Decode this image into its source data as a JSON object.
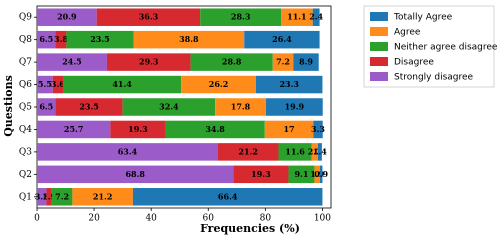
{
  "chart_data": {
    "type": "stacked-barh",
    "xlabel": "Frequencies (%)",
    "ylabel": "Questions",
    "categories": [
      "Q1",
      "Q2",
      "Q3",
      "Q4",
      "Q5",
      "Q6",
      "Q7",
      "Q8",
      "Q9"
    ],
    "series": [
      {
        "name": "Strongly disagree",
        "color": "#9b5cc9",
        "values": [
          3.3,
          68.8,
          63.4,
          25.7,
          6.5,
          5.5,
          24.5,
          6.5,
          20.9
        ]
      },
      {
        "name": "Disagree",
        "color": "#d62a30",
        "values": [
          1.9,
          19.3,
          21.2,
          19.3,
          23.5,
          3.6,
          29.3,
          3.8,
          36.3
        ]
      },
      {
        "name": "Neither agree disagree",
        "color": "#2ca02c",
        "values": [
          7.2,
          9.1,
          11.6,
          34.8,
          32.4,
          41.4,
          28.8,
          23.5,
          28.3
        ]
      },
      {
        "name": "Agree",
        "color": "#ff8c1a",
        "values": [
          21.2,
          1.9,
          2.2,
          17,
          17.8,
          26.2,
          7.2,
          38.8,
          11.1
        ]
      },
      {
        "name": "Totally Agree",
        "color": "#1f77b4",
        "values": [
          66.4,
          0.9,
          1.4,
          3.3,
          19.9,
          23.3,
          8.9,
          26.4,
          2.4
        ]
      }
    ],
    "xlim": [
      0,
      103
    ],
    "xticks": [
      0,
      20,
      40,
      60,
      80,
      100
    ],
    "legend": "outside-upper-right"
  }
}
